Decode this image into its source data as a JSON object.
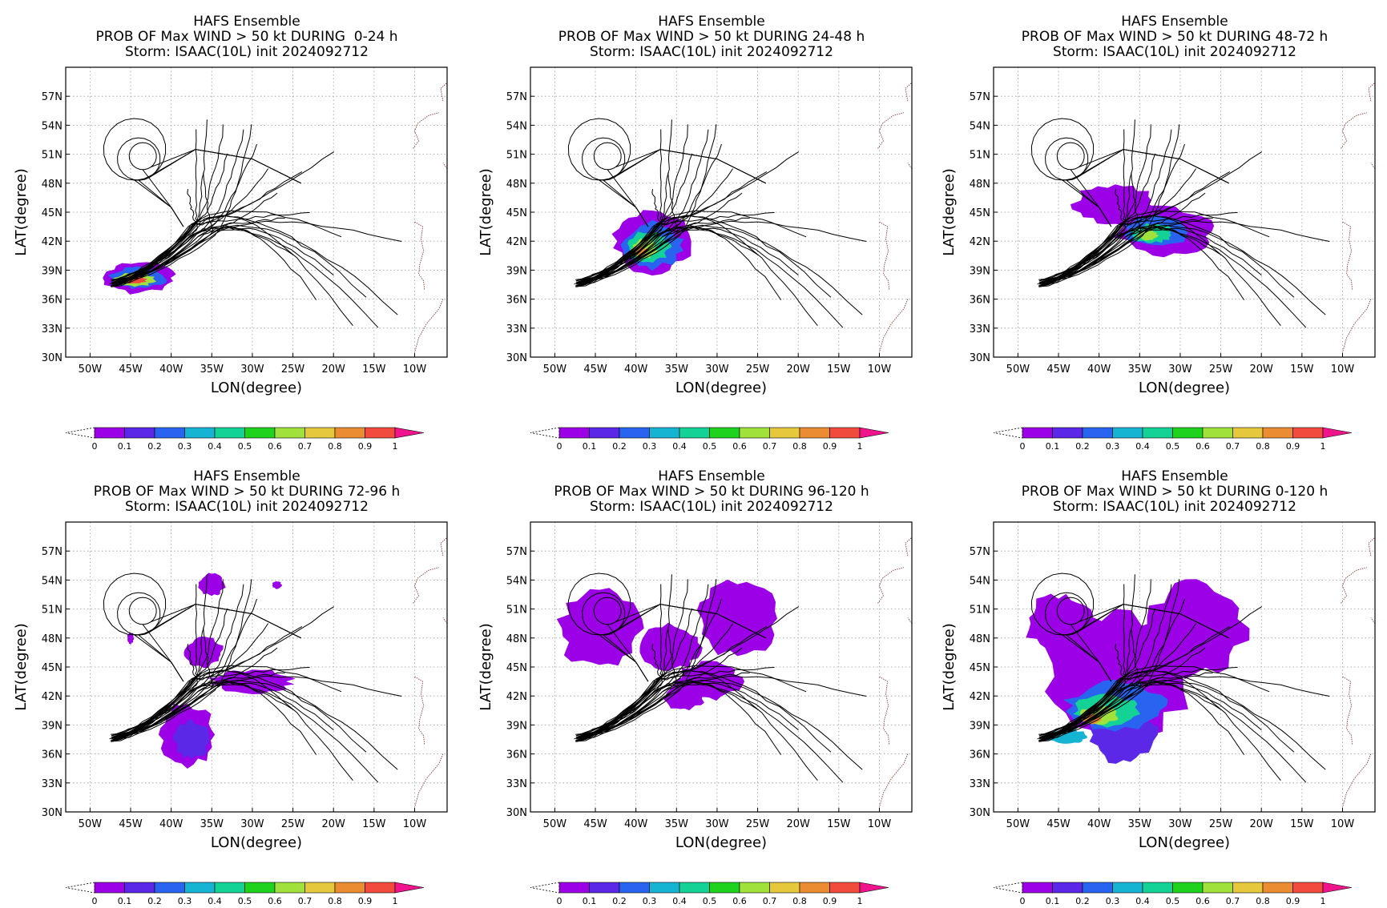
{
  "figure": {
    "ensemble_label": "HAFS Ensemble",
    "storm_line": "Storm: ISAAC(10L) init 2024092712",
    "xlabel": "LON(degree)",
    "ylabel": "LAT(degree)",
    "lon_ticks": [
      "50W",
      "45W",
      "40W",
      "35W",
      "30W",
      "25W",
      "20W",
      "15W",
      "10W"
    ],
    "lat_ticks": [
      "30N",
      "33N",
      "36N",
      "39N",
      "42N",
      "45N",
      "48N",
      "51N",
      "54N",
      "57N"
    ],
    "colorbar": {
      "labels": [
        "0",
        "0.1",
        "0.2",
        "0.3",
        "0.4",
        "0.5",
        "0.6",
        "0.7",
        "0.8",
        "0.9",
        "1"
      ],
      "colors": [
        "#9b00e6",
        "#5a28e6",
        "#2864f0",
        "#14b4d2",
        "#14d296",
        "#1ed21e",
        "#a0e13c",
        "#e6c83c",
        "#eb8c32",
        "#f04b3c"
      ],
      "over_color": "#f0148c"
    },
    "coast_color": "#8b3a3a"
  },
  "panels": [
    {
      "id": "p1",
      "prob_line": "PROB OF Max WIND > 50 kt DURING  0-24 h"
    },
    {
      "id": "p2",
      "prob_line": "PROB OF Max WIND > 50 kt DURING 24-48 h"
    },
    {
      "id": "p3",
      "prob_line": "PROB OF Max WIND > 50 kt DURING 48-72 h"
    },
    {
      "id": "p4",
      "prob_line": "PROB OF Max WIND > 50 kt DURING 72-96 h"
    },
    {
      "id": "p5",
      "prob_line": "PROB OF Max WIND > 50 kt DURING 96-120 h"
    },
    {
      "id": "p6",
      "prob_line": "PROB OF Max WIND > 50 kt DURING 0-120 h"
    }
  ]
}
